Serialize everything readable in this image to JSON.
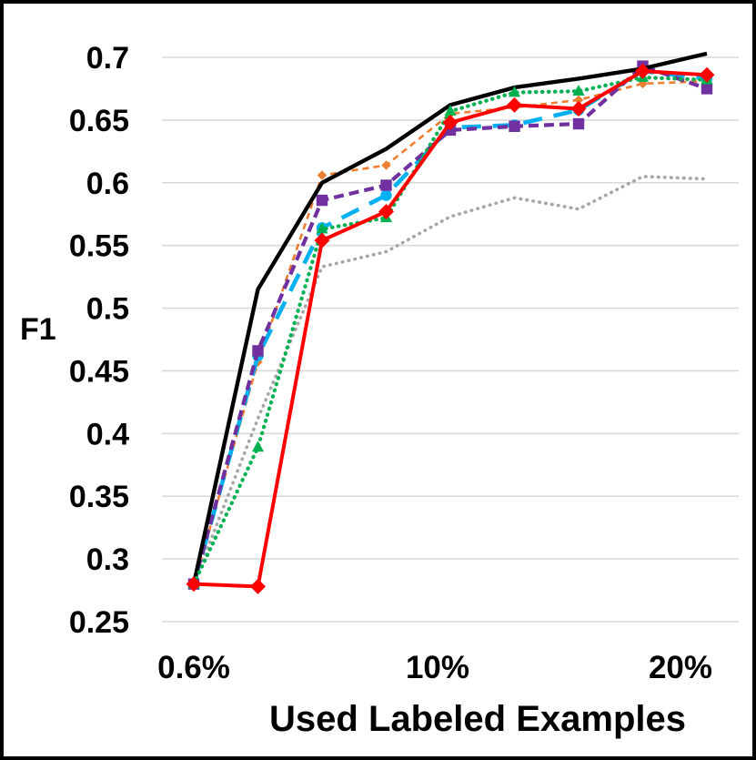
{
  "figure": {
    "type_label": "line chart"
  },
  "chart_data": {
    "type": "line",
    "title": "",
    "xlabel": "Used Labeled Examples",
    "ylabel": "F1",
    "ylim": [
      0.25,
      0.7
    ],
    "grid": "horizontal-only",
    "grid_color": "#D9D9D9",
    "legend": "none",
    "n_points": 9,
    "y_tick_labels": [
      "0.25",
      "0.3",
      "0.35",
      "0.4",
      "0.45",
      "0.5",
      "0.55",
      "0.6",
      "0.65",
      "0.7"
    ],
    "y_tick_values": [
      0.25,
      0.3,
      0.35,
      0.4,
      0.45,
      0.5,
      0.55,
      0.6,
      0.65,
      0.7
    ],
    "x_tick_labels": [
      {
        "index": 0,
        "label": "0.6%"
      },
      {
        "index": 4,
        "label": "10%"
      },
      {
        "index": 8,
        "label": "20%"
      }
    ],
    "series": [
      {
        "name": "gray-dotted",
        "color": "#A6A6A6",
        "width": 3.6,
        "dash": "dotted",
        "marker": "none",
        "values": [
          0.28,
          0.412,
          0.533,
          0.545,
          0.573,
          0.588,
          0.579,
          0.605,
          0.603
        ]
      },
      {
        "name": "orange-shortdash-diamond",
        "color": "#ED7D31",
        "width": 2.6,
        "dash": "smalldash",
        "marker": "diamond-small",
        "values": [
          0.28,
          0.457,
          0.606,
          0.614,
          0.655,
          0.66,
          0.666,
          0.679,
          0.681
        ]
      },
      {
        "name": "cyan-longdash-circle",
        "color": "#00B0F0",
        "width": 4.6,
        "dash": "longdash",
        "marker": "circle",
        "values": [
          0.28,
          0.462,
          0.564,
          0.59,
          0.644,
          0.646,
          0.658,
          0.689,
          0.683
        ]
      },
      {
        "name": "purple-dashed-square",
        "color": "#7030A0",
        "width": 4.2,
        "dash": "dashed",
        "marker": "square",
        "values": [
          0.28,
          0.466,
          0.586,
          0.598,
          0.642,
          0.645,
          0.647,
          0.693,
          0.675
        ]
      },
      {
        "name": "black-solid",
        "color": "#000000",
        "width": 4.4,
        "dash": "solid",
        "marker": "none",
        "values": [
          0.28,
          0.515,
          0.6,
          0.627,
          0.662,
          0.676,
          0.683,
          0.691,
          0.703
        ]
      },
      {
        "name": "green-dotted-triangle",
        "color": "#00B050",
        "width": 4.2,
        "dash": "dotted",
        "marker": "triangle",
        "values": [
          0.28,
          0.389,
          0.563,
          0.572,
          0.657,
          0.672,
          0.673,
          0.684,
          0.682
        ]
      },
      {
        "name": "red-solid-diamond",
        "color": "#FF0000",
        "width": 4.0,
        "dash": "solid",
        "marker": "diamond",
        "values": [
          0.28,
          0.278,
          0.554,
          0.577,
          0.648,
          0.662,
          0.659,
          0.689,
          0.686
        ]
      }
    ]
  }
}
